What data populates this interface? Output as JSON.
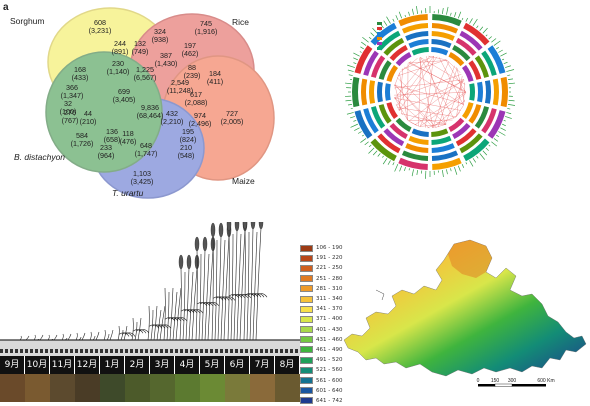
{
  "venn": {
    "panel_label": "a",
    "sets": [
      {
        "name": "Sorghum",
        "color": "#f2ea4a",
        "stroke": "#c9b92a"
      },
      {
        "name": "Rice",
        "color": "#e0534d",
        "stroke": "#b9302c"
      },
      {
        "name": "Maize",
        "color": "#f0613a",
        "stroke": "#c8421f"
      },
      {
        "name": "T. urartu",
        "color": "#4e63c9",
        "stroke": "#2f45a8"
      },
      {
        "name": "B. distachyon",
        "color": "#2f8f3a",
        "stroke": "#1e6a27"
      }
    ],
    "regions": [
      {
        "a": "608",
        "b": "(3,231)"
      },
      {
        "a": "745",
        "b": "(1,916)"
      },
      {
        "a": "324",
        "b": "(938)"
      },
      {
        "a": "197",
        "b": "(462)"
      },
      {
        "a": "244",
        "b": "(891)"
      },
      {
        "a": "132",
        "b": "(749)"
      },
      {
        "a": "387",
        "b": "(1,430)"
      },
      {
        "a": "230",
        "b": "(1,140)"
      },
      {
        "a": "1,225",
        "b": "(6,567)"
      },
      {
        "a": "88",
        "b": "(239)"
      },
      {
        "a": "184",
        "b": "(411)"
      },
      {
        "a": "168",
        "b": "(433)"
      },
      {
        "a": "366",
        "b": "(1,347)"
      },
      {
        "a": "699",
        "b": "(3,405)"
      },
      {
        "a": "2,549",
        "b": "(11,248)"
      },
      {
        "a": "617",
        "b": "(2,088)"
      },
      {
        "a": "276",
        "b": "(767)"
      },
      {
        "a": "32",
        "b": "(100)"
      },
      {
        "a": "9,836",
        "b": "(68,464)"
      },
      {
        "a": "432",
        "b": "(2,210)"
      },
      {
        "a": "974",
        "b": "(2,496)"
      },
      {
        "a": "727",
        "b": "(2,005)"
      },
      {
        "a": "44",
        "b": "(210)"
      },
      {
        "a": "136",
        "b": "(658)"
      },
      {
        "a": "195",
        "b": "(824)"
      },
      {
        "a": "584",
        "b": "(1,726)"
      },
      {
        "a": "233",
        "b": "(964)"
      },
      {
        "a": "118",
        "b": "(476)"
      },
      {
        "a": "648",
        "b": "(1,747)"
      },
      {
        "a": "210",
        "b": "(548)"
      },
      {
        "a": "1,103",
        "b": "(3,425)"
      }
    ]
  },
  "growth": {
    "months": [
      "9月",
      "10月",
      "11月",
      "12月",
      "1月",
      "2月",
      "3月",
      "4月",
      "5月",
      "6月",
      "7月",
      "8月"
    ],
    "strip_colors": [
      "#6a4a2a",
      "#7a5a30",
      "#5c4a2e",
      "#4a3c26",
      "#3e4a2a",
      "#4c5a2a",
      "#55672e",
      "#5c7a30",
      "#6b8a34",
      "#7a7a3a",
      "#8a6a3a",
      "#6a5a30"
    ]
  },
  "map_legend": {
    "items": [
      {
        "label": "106 - 190",
        "color": "#9c3b14"
      },
      {
        "label": "191 - 220",
        "color": "#b8471a"
      },
      {
        "label": "221 - 250",
        "color": "#cf5f1f"
      },
      {
        "label": "251 - 280",
        "color": "#e07a22"
      },
      {
        "label": "281 - 310",
        "color": "#ee9a2a"
      },
      {
        "label": "311 - 340",
        "color": "#f6c23a"
      },
      {
        "label": "341 - 370",
        "color": "#f7e04a"
      },
      {
        "label": "371 - 400",
        "color": "#d8e64a"
      },
      {
        "label": "401 - 430",
        "color": "#a8d84a"
      },
      {
        "label": "431 - 460",
        "color": "#74c742"
      },
      {
        "label": "461 - 490",
        "color": "#3fb43e"
      },
      {
        "label": "491 - 520",
        "color": "#1fa05a"
      },
      {
        "label": "521 - 560",
        "color": "#138c76"
      },
      {
        "label": "561 - 600",
        "color": "#147290"
      },
      {
        "label": "601 - 640",
        "color": "#1a56a0"
      },
      {
        "label": "641 - 742",
        "color": "#1e3a8e"
      }
    ],
    "scale_labels": [
      "0",
      "150",
      "300",
      "600 Km"
    ]
  }
}
